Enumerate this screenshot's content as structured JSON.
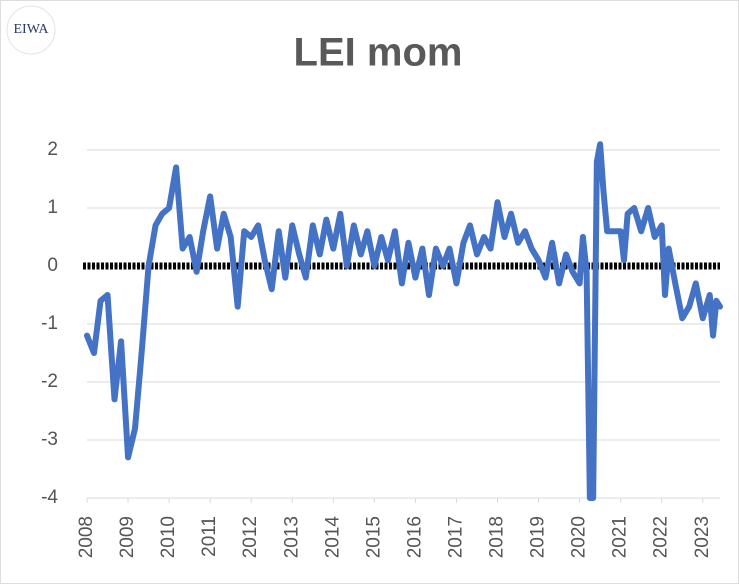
{
  "logo": "EIWA",
  "chart_data": {
    "type": "line",
    "title": "LEI mom",
    "x": [
      2008.0,
      2008.17,
      2008.33,
      2008.5,
      2008.67,
      2008.83,
      2009.0,
      2009.17,
      2009.33,
      2009.5,
      2009.67,
      2009.83,
      2010.0,
      2010.17,
      2010.33,
      2010.5,
      2010.67,
      2010.83,
      2011.0,
      2011.17,
      2011.33,
      2011.5,
      2011.67,
      2011.83,
      2012.0,
      2012.17,
      2012.33,
      2012.5,
      2012.67,
      2012.83,
      2013.0,
      2013.17,
      2013.33,
      2013.5,
      2013.67,
      2013.83,
      2014.0,
      2014.17,
      2014.33,
      2014.5,
      2014.67,
      2014.83,
      2015.0,
      2015.17,
      2015.33,
      2015.5,
      2015.67,
      2015.83,
      2016.0,
      2016.17,
      2016.33,
      2016.5,
      2016.67,
      2016.83,
      2017.0,
      2017.17,
      2017.33,
      2017.5,
      2017.67,
      2017.83,
      2018.0,
      2018.17,
      2018.33,
      2018.5,
      2018.67,
      2018.83,
      2019.0,
      2019.17,
      2019.33,
      2019.5,
      2019.67,
      2019.83,
      2020.0,
      2020.08,
      2020.17,
      2020.25,
      2020.33,
      2020.42,
      2020.5,
      2020.58,
      2020.67,
      2020.83,
      2021.0,
      2021.08,
      2021.17,
      2021.33,
      2021.5,
      2021.67,
      2021.83,
      2022.0,
      2022.08,
      2022.17,
      2022.33,
      2022.5,
      2022.67,
      2022.83,
      2023.0,
      2023.17,
      2023.25,
      2023.33,
      2023.42
    ],
    "series": [
      {
        "name": "LEI mom",
        "color": "#4472c4",
        "values": [
          -1.2,
          -1.5,
          -0.6,
          -0.5,
          -2.3,
          -1.3,
          -3.3,
          -2.8,
          -1.5,
          0.0,
          0.7,
          0.9,
          1.0,
          1.7,
          0.3,
          0.5,
          -0.1,
          0.6,
          1.2,
          0.3,
          0.9,
          0.5,
          -0.7,
          0.6,
          0.5,
          0.7,
          0.1,
          -0.4,
          0.6,
          -0.2,
          0.7,
          0.2,
          -0.2,
          0.7,
          0.2,
          0.8,
          0.3,
          0.9,
          0.0,
          0.7,
          0.2,
          0.6,
          0.0,
          0.5,
          0.1,
          0.6,
          -0.3,
          0.4,
          -0.2,
          0.3,
          -0.5,
          0.3,
          0.0,
          0.3,
          -0.3,
          0.4,
          0.7,
          0.2,
          0.5,
          0.3,
          1.1,
          0.5,
          0.9,
          0.4,
          0.6,
          0.3,
          0.1,
          -0.2,
          0.4,
          -0.3,
          0.2,
          -0.1,
          -0.3,
          0.5,
          -0.1,
          -4.0,
          -4.0,
          1.8,
          2.1,
          1.3,
          0.6,
          0.6,
          0.6,
          0.1,
          0.9,
          1.0,
          0.6,
          1.0,
          0.5,
          0.7,
          -0.5,
          0.3,
          -0.3,
          -0.9,
          -0.7,
          -0.3,
          -0.9,
          -0.5,
          -1.2,
          -0.6,
          -0.7
        ]
      }
    ],
    "xlim": [
      2008,
      2023.42
    ],
    "xticks": [
      2008,
      2009,
      2010,
      2011,
      2012,
      2013,
      2014,
      2015,
      2016,
      2017,
      2018,
      2019,
      2020,
      2021,
      2022,
      2023
    ],
    "ylim": [
      -4,
      2
    ],
    "yticks": [
      -4,
      -3,
      -2,
      -1,
      0,
      1,
      2
    ],
    "grid": true
  }
}
